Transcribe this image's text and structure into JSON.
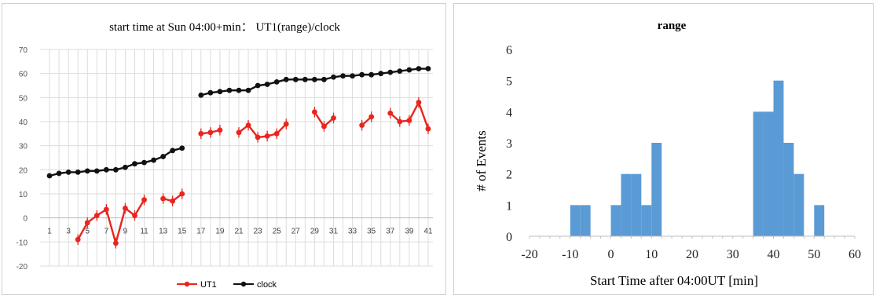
{
  "chart_data": [
    {
      "type": "line",
      "title": "start time at Sun 04:00+min： UT1(range)/clock",
      "xlabel": "",
      "ylabel": "",
      "x_ticks": [
        "1",
        "3",
        "5",
        "7",
        "9",
        "11",
        "13",
        "15",
        "17",
        "19",
        "21",
        "23",
        "25",
        "27",
        "29",
        "31",
        "33",
        "35",
        "37",
        "39",
        "41"
      ],
      "xlim": [
        0,
        41.5
      ],
      "ylim": [
        -20,
        70
      ],
      "y_ticks": [
        -20,
        -10,
        0,
        10,
        20,
        30,
        40,
        50,
        60,
        70
      ],
      "grid": true,
      "legend": "bottom-center",
      "series": [
        {
          "name": "UT1",
          "color": "#e8261e",
          "segments": [
            [
              [
                4,
                -9
              ],
              [
                5,
                -2
              ],
              [
                6,
                1
              ],
              [
                7,
                3.5
              ],
              [
                8,
                -10.5
              ],
              [
                9,
                4
              ],
              [
                10,
                1
              ],
              [
                11,
                7.5
              ]
            ],
            [
              [
                13,
                8
              ],
              [
                14,
                7
              ],
              [
                15,
                10
              ]
            ],
            [
              [
                17,
                35
              ],
              [
                18,
                35.5
              ],
              [
                19,
                36.5
              ]
            ],
            [
              [
                21,
                35.5
              ],
              [
                22,
                38.5
              ],
              [
                23,
                33.5
              ],
              [
                24,
                34
              ],
              [
                25,
                35
              ],
              [
                26,
                39
              ]
            ],
            [
              [
                29,
                44
              ],
              [
                30,
                38
              ],
              [
                31,
                41.5
              ]
            ],
            [
              [
                34,
                38.5
              ],
              [
                35,
                42
              ]
            ],
            [
              [
                37,
                43.5
              ],
              [
                38,
                40
              ],
              [
                39,
                40.5
              ],
              [
                40,
                48
              ],
              [
                41,
                37
              ]
            ]
          ]
        },
        {
          "name": "clock",
          "color": "#111111",
          "segments": [
            [
              [
                1,
                17.5
              ],
              [
                2,
                18.5
              ],
              [
                3,
                19
              ],
              [
                4,
                19
              ],
              [
                5,
                19.5
              ],
              [
                6,
                19.5
              ],
              [
                7,
                20
              ],
              [
                8,
                20
              ],
              [
                9,
                21
              ],
              [
                10,
                22.5
              ],
              [
                11,
                23
              ],
              [
                12,
                24
              ],
              [
                13,
                25.5
              ],
              [
                14,
                28
              ],
              [
                15,
                29
              ]
            ],
            [
              [
                17,
                51
              ],
              [
                18,
                52
              ],
              [
                19,
                52.5
              ],
              [
                20,
                53
              ],
              [
                21,
                53
              ],
              [
                22,
                53
              ],
              [
                23,
                55
              ],
              [
                24,
                55.5
              ],
              [
                25,
                56.5
              ],
              [
                26,
                57.5
              ],
              [
                27,
                57.5
              ],
              [
                28,
                57.5
              ],
              [
                29,
                57.5
              ],
              [
                30,
                57.5
              ],
              [
                31,
                58.5
              ],
              [
                32,
                59
              ],
              [
                33,
                59
              ],
              [
                34,
                59.5
              ],
              [
                35,
                59.5
              ],
              [
                36,
                60
              ],
              [
                37,
                60.5
              ],
              [
                38,
                61
              ],
              [
                39,
                61.5
              ],
              [
                40,
                62
              ],
              [
                41,
                62
              ]
            ]
          ]
        }
      ]
    },
    {
      "type": "bar",
      "title": "range",
      "xlabel": "Start Time after 04:00UT [min]",
      "ylabel": "# of Events",
      "xlim": [
        -20,
        60
      ],
      "ylim": [
        0,
        6
      ],
      "x_ticks": [
        -20,
        -10,
        0,
        10,
        20,
        30,
        40,
        50,
        60
      ],
      "y_ticks": [
        0,
        1,
        2,
        3,
        4,
        5,
        6
      ],
      "grid": false,
      "bar_color": "#5b9bd5",
      "bin_width": 2.5,
      "bins": [
        {
          "start": -10,
          "count": 1
        },
        {
          "start": -7.5,
          "count": 1
        },
        {
          "start": 0,
          "count": 1
        },
        {
          "start": 2.5,
          "count": 2
        },
        {
          "start": 5,
          "count": 2
        },
        {
          "start": 7.5,
          "count": 1
        },
        {
          "start": 10,
          "count": 3
        },
        {
          "start": 35,
          "count": 4
        },
        {
          "start": 37.5,
          "count": 4
        },
        {
          "start": 40,
          "count": 5
        },
        {
          "start": 42.5,
          "count": 3
        },
        {
          "start": 45,
          "count": 2
        },
        {
          "start": 50,
          "count": 1
        }
      ]
    }
  ]
}
